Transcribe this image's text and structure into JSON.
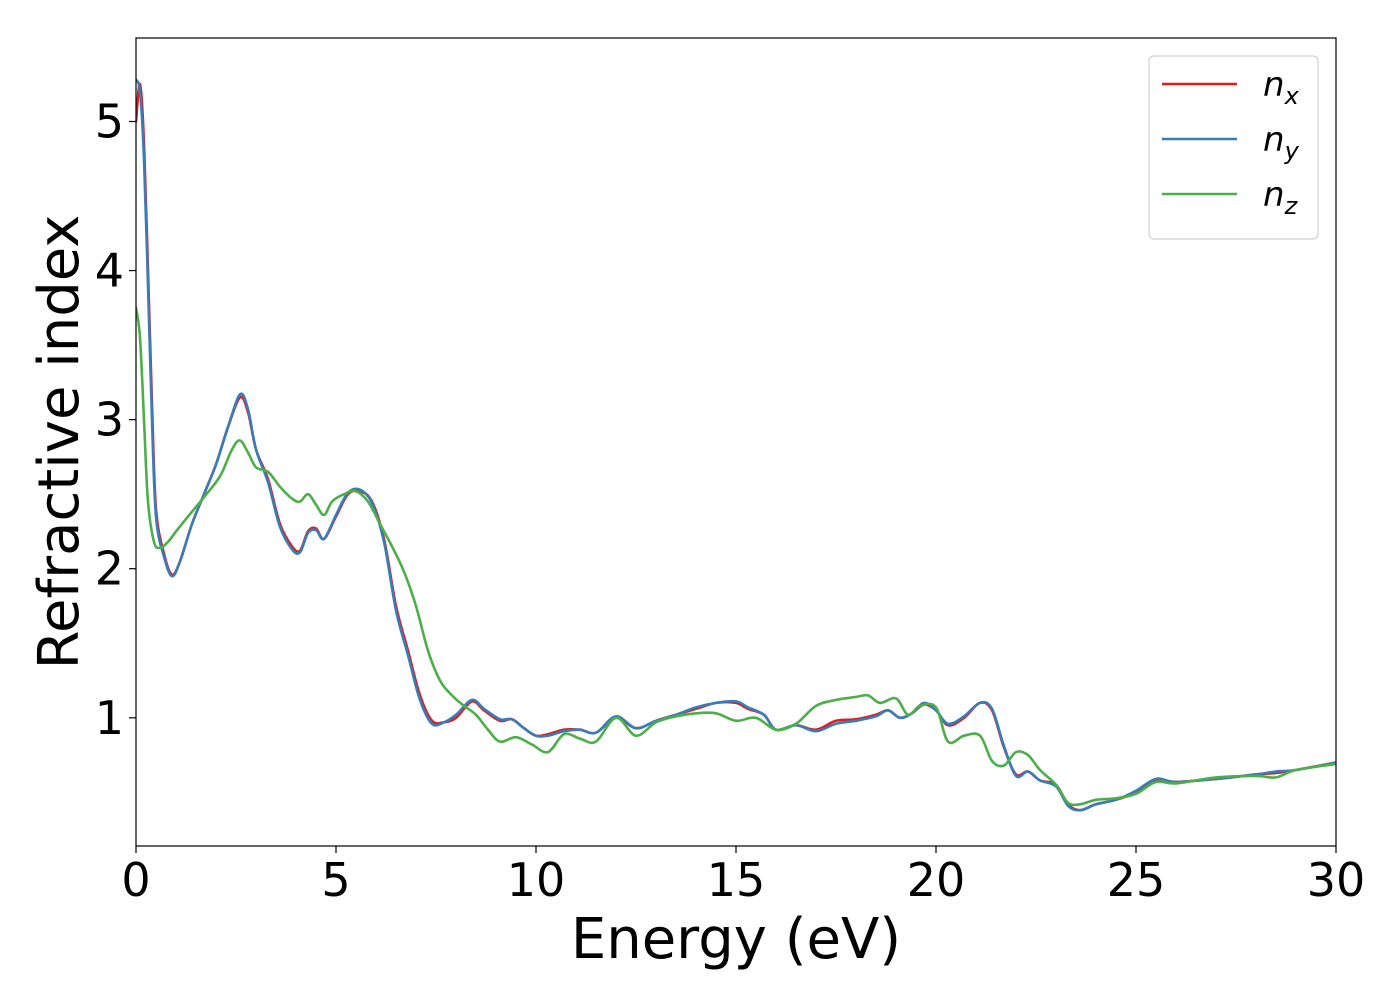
{
  "chart_data": {
    "type": "line",
    "xlabel": "Energy (eV)",
    "ylabel": "Refractive index",
    "xlim": [
      0,
      30
    ],
    "ylim": [
      0.14,
      5.56
    ],
    "xticks": [
      0,
      5,
      10,
      15,
      20,
      25,
      30
    ],
    "yticks": [
      1,
      2,
      3,
      4,
      5
    ],
    "grid": false,
    "legend_position": "top-right",
    "series": [
      {
        "name": "n_x",
        "label_base": "n",
        "label_sub": "x",
        "color": "#e41a1c",
        "x": [
          0,
          0.1,
          0.2,
          0.3,
          0.4,
          0.5,
          0.7,
          0.9,
          1.1,
          1.4,
          1.7,
          2.0,
          2.3,
          2.6,
          2.8,
          3.0,
          3.3,
          3.6,
          3.9,
          4.1,
          4.3,
          4.5,
          4.7,
          5.0,
          5.3,
          5.6,
          5.9,
          6.2,
          6.5,
          6.8,
          7.1,
          7.4,
          7.7,
          8.0,
          8.4,
          8.7,
          9.1,
          9.4,
          9.7,
          10.0,
          10.3,
          10.7,
          11.1,
          11.5,
          12.0,
          12.5,
          13.0,
          13.5,
          14.0,
          14.5,
          15.0,
          15.3,
          15.7,
          16.0,
          16.5,
          17.0,
          17.5,
          18.0,
          18.5,
          18.8,
          19.1,
          19.4,
          19.7,
          20.0,
          20.3,
          20.7,
          21.1,
          21.4,
          21.7,
          22.0,
          22.3,
          22.6,
          23.0,
          23.3,
          23.6,
          24.0,
          24.5,
          25.0,
          25.5,
          26.0,
          27.0,
          28.0,
          28.5,
          29.0,
          30.0
        ],
        "y": [
          5.0,
          5.25,
          4.85,
          4.0,
          3.1,
          2.4,
          2.1,
          1.96,
          2.05,
          2.3,
          2.5,
          2.7,
          2.95,
          3.15,
          3.05,
          2.8,
          2.6,
          2.3,
          2.15,
          2.12,
          2.25,
          2.27,
          2.2,
          2.35,
          2.5,
          2.52,
          2.45,
          2.2,
          1.75,
          1.45,
          1.15,
          0.98,
          0.97,
          1.0,
          1.11,
          1.05,
          0.98,
          0.99,
          0.93,
          0.88,
          0.89,
          0.92,
          0.92,
          0.9,
          1.0,
          0.93,
          0.98,
          1.02,
          1.06,
          1.1,
          1.1,
          1.06,
          1.02,
          0.92,
          0.95,
          0.92,
          0.98,
          0.99,
          1.02,
          1.05,
          1.0,
          1.03,
          1.09,
          1.05,
          0.95,
          1.0,
          1.1,
          1.05,
          0.8,
          0.62,
          0.64,
          0.58,
          0.55,
          0.42,
          0.38,
          0.42,
          0.45,
          0.5,
          0.58,
          0.57,
          0.59,
          0.62,
          0.63,
          0.65,
          0.7
        ]
      },
      {
        "name": "n_y",
        "label_base": "n",
        "label_sub": "y",
        "color": "#377eb8",
        "x": [
          0,
          0.1,
          0.2,
          0.3,
          0.4,
          0.5,
          0.7,
          0.9,
          1.1,
          1.4,
          1.7,
          2.0,
          2.3,
          2.6,
          2.8,
          3.0,
          3.3,
          3.6,
          3.9,
          4.1,
          4.3,
          4.5,
          4.7,
          5.0,
          5.3,
          5.6,
          5.9,
          6.2,
          6.5,
          6.8,
          7.1,
          7.4,
          7.7,
          8.0,
          8.4,
          8.7,
          9.1,
          9.4,
          9.7,
          10.0,
          10.3,
          10.7,
          11.1,
          11.5,
          12.0,
          12.5,
          13.0,
          13.5,
          14.0,
          14.5,
          15.0,
          15.3,
          15.7,
          16.0,
          16.5,
          17.0,
          17.5,
          18.0,
          18.5,
          18.8,
          19.1,
          19.4,
          19.7,
          20.0,
          20.3,
          20.7,
          21.1,
          21.4,
          21.7,
          22.0,
          22.3,
          22.6,
          23.0,
          23.3,
          23.6,
          24.0,
          24.5,
          25.0,
          25.5,
          26.0,
          27.0,
          28.0,
          28.5,
          29.0,
          30.0
        ],
        "y": [
          5.28,
          5.2,
          4.75,
          3.9,
          3.0,
          2.35,
          2.08,
          1.95,
          2.05,
          2.3,
          2.5,
          2.7,
          2.95,
          3.17,
          3.07,
          2.8,
          2.58,
          2.28,
          2.13,
          2.11,
          2.24,
          2.26,
          2.2,
          2.36,
          2.51,
          2.53,
          2.44,
          2.18,
          1.72,
          1.42,
          1.12,
          0.96,
          0.97,
          1.02,
          1.12,
          1.06,
          0.99,
          0.99,
          0.93,
          0.88,
          0.88,
          0.91,
          0.92,
          0.9,
          1.01,
          0.93,
          0.98,
          1.02,
          1.07,
          1.1,
          1.11,
          1.07,
          1.02,
          0.92,
          0.95,
          0.91,
          0.96,
          0.98,
          1.01,
          1.05,
          1.0,
          1.03,
          1.1,
          1.05,
          0.96,
          1.01,
          1.1,
          1.06,
          0.81,
          0.61,
          0.64,
          0.58,
          0.54,
          0.41,
          0.38,
          0.42,
          0.45,
          0.51,
          0.59,
          0.57,
          0.59,
          0.62,
          0.64,
          0.65,
          0.7
        ]
      },
      {
        "name": "n_z",
        "label_base": "n",
        "label_sub": "z",
        "color": "#4daf4a",
        "x": [
          0,
          0.1,
          0.2,
          0.3,
          0.45,
          0.6,
          0.8,
          1.0,
          1.3,
          1.7,
          2.1,
          2.4,
          2.6,
          2.8,
          3.0,
          3.3,
          3.6,
          3.9,
          4.1,
          4.3,
          4.5,
          4.7,
          4.9,
          5.2,
          5.5,
          5.8,
          6.1,
          6.4,
          6.7,
          7.0,
          7.3,
          7.6,
          7.9,
          8.2,
          8.5,
          8.8,
          9.1,
          9.5,
          9.9,
          10.3,
          10.7,
          11.1,
          11.5,
          12.0,
          12.5,
          13.0,
          13.5,
          14.0,
          14.5,
          15.0,
          15.5,
          16.0,
          16.5,
          17.0,
          17.5,
          18.0,
          18.3,
          18.6,
          19.0,
          19.3,
          19.6,
          20.0,
          20.3,
          20.7,
          21.1,
          21.4,
          21.7,
          22.0,
          22.3,
          22.6,
          23.0,
          23.3,
          23.6,
          24.0,
          24.5,
          25.0,
          25.5,
          26.0,
          27.0,
          28.0,
          28.5,
          29.0,
          30.0
        ],
        "y": [
          3.75,
          3.55,
          3.0,
          2.45,
          2.18,
          2.14,
          2.18,
          2.25,
          2.35,
          2.48,
          2.62,
          2.8,
          2.86,
          2.78,
          2.68,
          2.65,
          2.55,
          2.47,
          2.45,
          2.5,
          2.43,
          2.36,
          2.45,
          2.5,
          2.52,
          2.45,
          2.3,
          2.15,
          1.98,
          1.75,
          1.45,
          1.25,
          1.15,
          1.08,
          1.02,
          0.92,
          0.84,
          0.87,
          0.82,
          0.77,
          0.89,
          0.86,
          0.84,
          1.0,
          0.88,
          0.97,
          1.01,
          1.03,
          1.03,
          0.98,
          1.0,
          0.92,
          0.96,
          1.08,
          1.12,
          1.14,
          1.15,
          1.1,
          1.13,
          1.02,
          1.08,
          1.07,
          0.84,
          0.88,
          0.88,
          0.71,
          0.68,
          0.77,
          0.75,
          0.65,
          0.55,
          0.43,
          0.42,
          0.45,
          0.46,
          0.49,
          0.57,
          0.56,
          0.6,
          0.61,
          0.6,
          0.65,
          0.69
        ]
      }
    ]
  }
}
